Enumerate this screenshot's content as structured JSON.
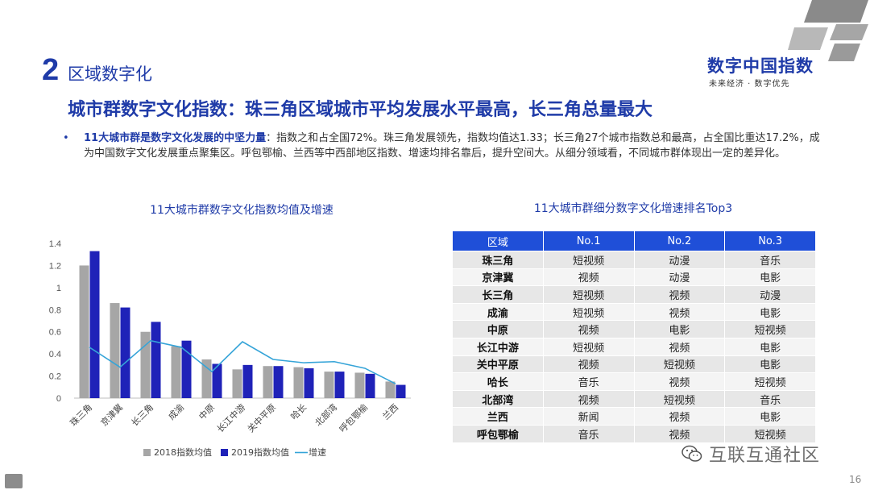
{
  "section": {
    "number": "2",
    "title": "区域数字化"
  },
  "brand": {
    "name": "数字中国指数",
    "slogan": "未来经济 · 数字优先"
  },
  "headline": "城市群数字文化指数：珠三角区域城市平均发展水平最高，长三角总量最大",
  "bullet": {
    "lead": "11大城市群是数字文化发展的中坚力量",
    "body": "：指数之和占全国72%。珠三角发展领先，指数均值达1.33；长三角27个城市指数总和最高，占全国比重达17.2%，成为中国数字文化发展重点聚集区。呼包鄂榆、兰西等中西部地区指数、增速均排名靠后，提升空间大。从细分领域看，不同城市群体现出一定的差异化。"
  },
  "chart_title": "11大城市群数字文化指数均值及增速",
  "table_title": "11大城市群细分数字文化增速排名Top3",
  "chart_data": {
    "type": "bar",
    "title": "11大城市群数字文化指数均值及增速",
    "categories": [
      "珠三角",
      "京津冀",
      "长三角",
      "成渝",
      "中原",
      "长江中游",
      "关中平原",
      "哈长",
      "北部湾",
      "呼包鄂榆",
      "兰西"
    ],
    "series": [
      {
        "name": "2018指数均值",
        "type": "bar",
        "color": "#a6a6a6",
        "values": [
          1.2,
          0.86,
          0.6,
          0.47,
          0.35,
          0.26,
          0.29,
          0.28,
          0.24,
          0.23,
          0.15
        ]
      },
      {
        "name": "2019指数均值",
        "type": "bar",
        "color": "#1f22b8",
        "values": [
          1.33,
          0.82,
          0.69,
          0.52,
          0.31,
          0.3,
          0.29,
          0.27,
          0.24,
          0.22,
          0.12
        ]
      },
      {
        "name": "增速",
        "type": "line",
        "color": "#35a4d8",
        "values": [
          0.46,
          0.28,
          0.52,
          0.46,
          0.24,
          0.51,
          0.35,
          0.32,
          0.33,
          0.27,
          0.13
        ]
      }
    ],
    "yticks": [
      "0",
      "0.2",
      "0.4",
      "0.6",
      "0.8",
      "1",
      "1.2",
      "1.4"
    ],
    "ylim": [
      0,
      1.4
    ],
    "legend_position": "bottom",
    "grid": false
  },
  "table": {
    "headers": [
      "区域",
      "No.1",
      "No.2",
      "No.3"
    ],
    "rows": [
      [
        "珠三角",
        "短视频",
        "动漫",
        "音乐"
      ],
      [
        "京津冀",
        "视频",
        "动漫",
        "电影"
      ],
      [
        "长三角",
        "短视频",
        "视频",
        "动漫"
      ],
      [
        "成渝",
        "短视频",
        "视频",
        "电影"
      ],
      [
        "中原",
        "视频",
        "电影",
        "短视频"
      ],
      [
        "长江中游",
        "短视频",
        "视频",
        "电影"
      ],
      [
        "关中平原",
        "视频",
        "短视频",
        "电影"
      ],
      [
        "哈长",
        "音乐",
        "视频",
        "短视频"
      ],
      [
        "北部湾",
        "视频",
        "短视频",
        "音乐"
      ],
      [
        "兰西",
        "新闻",
        "视频",
        "电影"
      ],
      [
        "呼包鄂榆",
        "音乐",
        "视频",
        "短视频"
      ]
    ]
  },
  "watermark": "互联互通社区",
  "page_number": "16",
  "colors": {
    "brand_blue": "#1f3ba8",
    "header_blue": "#1f4fd8"
  }
}
